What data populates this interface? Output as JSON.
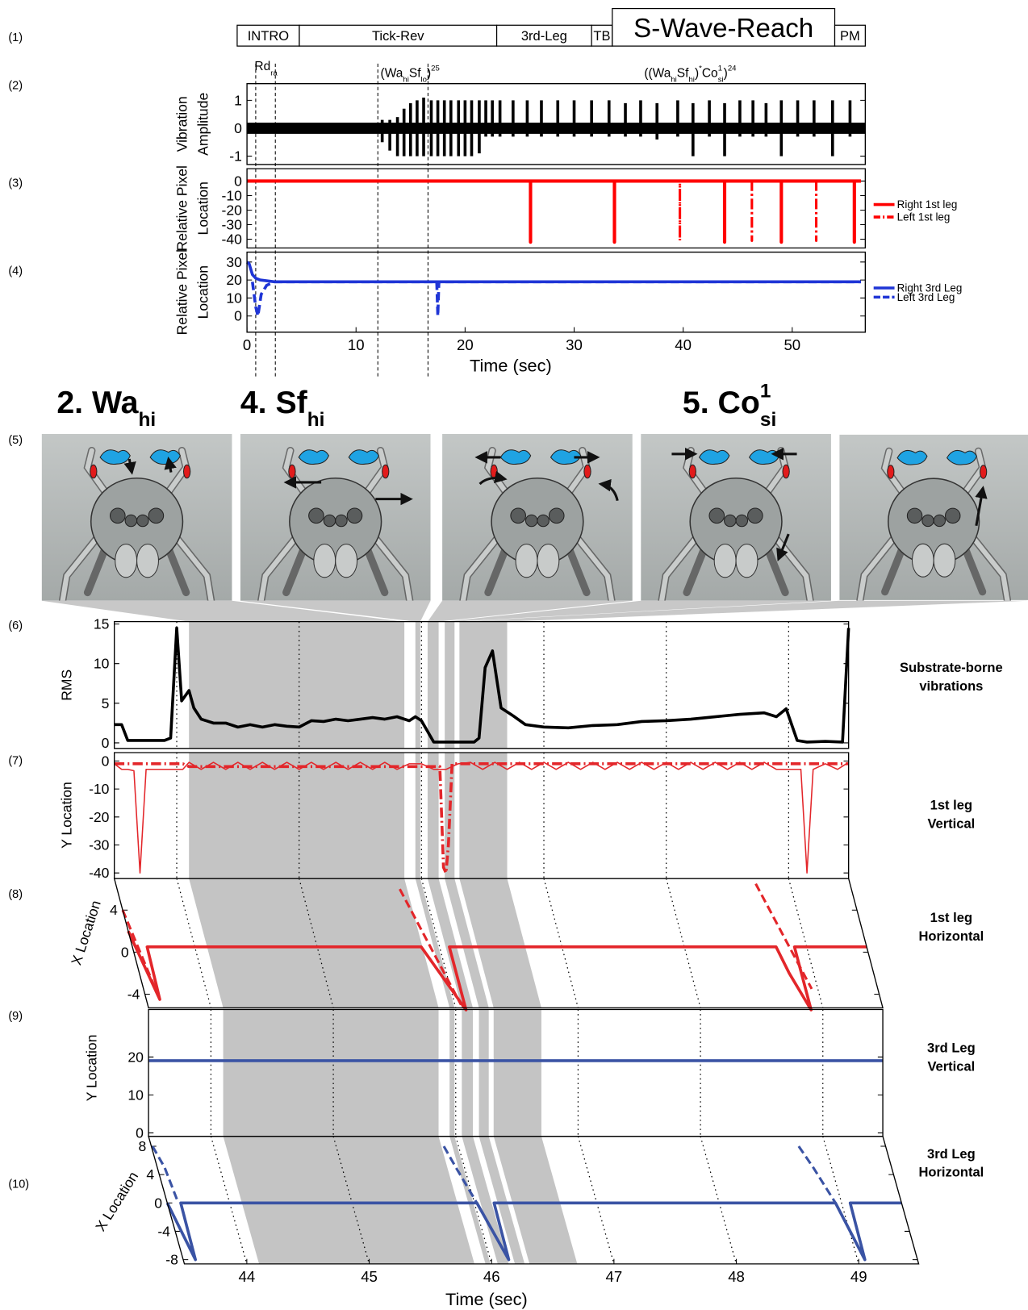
{
  "panel_labels": [
    "(1)",
    "(2)",
    "(3)",
    "(4)",
    "(5)",
    "(6)",
    "(7)",
    "(8)",
    "(9)",
    "(10)"
  ],
  "photo_titles": [
    {
      "parts": [
        {
          "text": "2. Wa"
        },
        {
          "text": "hi",
          "shift": "sub"
        }
      ]
    },
    {
      "parts": [
        {
          "text": "4. Sf"
        },
        {
          "text": "hi",
          "shift": "sub"
        }
      ]
    },
    {
      "parts": [
        {
          "text": "5. Co"
        },
        {
          "text": "1",
          "shift": "sup"
        },
        {
          "text": "si",
          "shift": "sub"
        }
      ]
    }
  ],
  "chart_data": [
    {
      "type": "segments",
      "xlim": [
        0,
        56.7
      ],
      "segments": [
        {
          "label": "INTRO",
          "start": -0.9,
          "end": 4.8
        },
        {
          "label": "Tick-Rev",
          "start": 4.8,
          "end": 22.9
        },
        {
          "label": "3rd-Leg",
          "start": 22.9,
          "end": 31.6
        },
        {
          "label": "TB",
          "start": 31.6,
          "end": 33.5
        },
        {
          "label": "S-Wave-Reach",
          "start": 33.5,
          "end": 53.9,
          "highlight": true
        },
        {
          "label": "PM",
          "start": 53.9,
          "end": 56.7
        }
      ]
    },
    {
      "type": "spike",
      "ylabel": [
        "Vibration",
        "Amplitude"
      ],
      "color": "#000000",
      "xlim": [
        0,
        56.7
      ],
      "ylim": [
        -1.3,
        1.6
      ],
      "yticks": [
        -1,
        0,
        1
      ],
      "band": [
        -0.2,
        0.2
      ],
      "x": [
        12.4,
        13.1,
        13.8,
        14.4,
        15.0,
        15.6,
        16.2,
        16.9,
        17.5,
        18.1,
        18.7,
        19.4,
        20.0,
        20.6,
        21.3,
        21.9,
        22.5,
        23.2,
        24.4,
        25.7,
        27.0,
        28.5,
        30.0,
        31.6,
        33.2,
        34.7,
        36.1,
        37.6,
        39.5,
        40.9,
        42.4,
        43.8,
        45.2,
        46.4,
        47.6,
        49.0,
        50.5,
        52.0,
        53.7,
        55.3
      ],
      "max": [
        0.3,
        0.3,
        0.4,
        0.7,
        0.9,
        1.0,
        1.1,
        1.0,
        1.0,
        1.0,
        1.0,
        1.0,
        1.0,
        1.0,
        1.0,
        1.0,
        1.0,
        1.0,
        1.0,
        1.0,
        1.0,
        1.0,
        1.0,
        1.0,
        1.0,
        0.9,
        1.0,
        0.9,
        1.0,
        0.9,
        1.0,
        0.9,
        1.0,
        1.0,
        0.9,
        1.0,
        1.0,
        1.0,
        1.0,
        1.0
      ],
      "min": [
        -0.5,
        -0.8,
        -1.0,
        -1.0,
        -1.0,
        -1.0,
        -1.0,
        -1.0,
        -1.0,
        -1.0,
        -1.0,
        -1.0,
        -1.0,
        -1.0,
        -0.9,
        -0.3,
        -0.3,
        -0.3,
        -0.3,
        -0.3,
        -0.3,
        -0.3,
        -0.3,
        -0.3,
        -0.3,
        -0.3,
        -0.3,
        -0.4,
        -0.3,
        -1.0,
        -0.3,
        -1.0,
        -0.3,
        -0.3,
        -0.3,
        -1.0,
        -0.3,
        -0.3,
        -1.0,
        -0.3
      ],
      "markers": [
        0.8,
        2.6,
        12.0,
        16.6
      ],
      "annotations": [
        {
          "parts": [
            {
              "text": "Rd"
            },
            {
              "text": "ra",
              "shift": "sub"
            }
          ]
        },
        {
          "parts": [
            {
              "text": "(Wa"
            },
            {
              "text": "hi",
              "shift": "sub"
            },
            {
              "text": "Sf"
            },
            {
              "text": "lo",
              "shift": "sub"
            },
            {
              "text": ")"
            },
            {
              "text": "25",
              "shift": "sup"
            }
          ]
        },
        {
          "parts": [
            {
              "text": "((Wa"
            },
            {
              "text": "hi",
              "shift": "sub"
            },
            {
              "text": "Sf"
            },
            {
              "text": "hi",
              "shift": "sub"
            },
            {
              "text": ")"
            },
            {
              "text": "*",
              "shift": "sup"
            },
            {
              "text": "Co"
            },
            {
              "text": "1",
              "shift": "sup"
            },
            {
              "text": "si",
              "shift": "sub"
            },
            {
              "text": ")"
            },
            {
              "text": "24",
              "shift": "sup"
            }
          ]
        }
      ]
    },
    {
      "type": "line",
      "ylabel": [
        "Relative Pixel",
        "Location"
      ],
      "xlim": [
        0,
        56.7
      ],
      "ylim": [
        -46,
        8.5
      ],
      "yticks": [
        -40,
        -30,
        -20,
        -10,
        0
      ],
      "series": [
        {
          "name": "Right 1st leg",
          "color": "#ff0000",
          "style": "solid",
          "x": [
            0,
            26,
            26,
            26,
            33.7,
            33.7,
            33.7,
            43.8,
            43.8,
            43.8,
            49,
            49,
            49,
            55.7,
            55.7,
            55.7,
            56.3
          ],
          "values": [
            0,
            0,
            -42,
            0,
            0,
            -42,
            0,
            0,
            -42,
            0,
            0,
            -42,
            0,
            0,
            -42,
            0,
            0
          ]
        },
        {
          "name": "Left 1st leg",
          "color": "#ff0000",
          "style": "dashdot",
          "x": [
            0,
            39.7,
            39.7,
            39.7,
            46.3,
            46.3,
            46.3,
            52.2,
            52.2,
            52.2,
            56.3
          ],
          "values": [
            0,
            0,
            -41,
            0,
            0,
            -41,
            0,
            0,
            -41,
            0,
            0
          ]
        }
      ]
    },
    {
      "type": "line",
      "ylabel": [
        "Relative Pixel",
        "Location"
      ],
      "xlabel": "Time (sec)",
      "xlim": [
        0,
        56.7
      ],
      "xticks": [
        0,
        10,
        20,
        30,
        40,
        50
      ],
      "ylim": [
        -9,
        35.5
      ],
      "yticks": [
        0,
        10,
        20,
        30
      ],
      "series": [
        {
          "name": "Right 3rd Leg",
          "color": "#1f35d6",
          "style": "solid",
          "x": [
            0,
            0.2,
            0.5,
            0.8,
            1.2,
            2.5,
            3,
            56.3
          ],
          "values": [
            30,
            29,
            23,
            21,
            20,
            19,
            19,
            19
          ]
        },
        {
          "name": "Left 3rd Leg",
          "color": "#1f35d6",
          "style": "dashed",
          "x": [
            0.5,
            0.8,
            1.0,
            1.3,
            1.8,
            2.5,
            17.4,
            17.5,
            17.6,
            56.3
          ],
          "values": [
            19,
            5,
            0,
            12,
            17,
            19,
            19,
            0,
            19,
            19
          ]
        }
      ]
    },
    {
      "type": "line",
      "ylabel": "RMS",
      "side_label": [
        "Substrate-borne",
        "vibrations"
      ],
      "xlim": [
        43.49,
        49.49
      ],
      "xgrid": [
        44,
        45,
        46,
        47,
        48,
        49
      ],
      "ylim": [
        -0.7,
        15.3
      ],
      "yticks": [
        0,
        5,
        10,
        15
      ],
      "shaded": [
        [
          44.1,
          45.86
        ],
        [
          45.95,
          45.99
        ],
        [
          46.05,
          46.14
        ],
        [
          46.19,
          46.27
        ],
        [
          46.31,
          46.7
        ]
      ],
      "series": [
        {
          "color": "#000000",
          "style": "solid",
          "x": [
            43.49,
            43.55,
            43.6,
            43.9,
            43.95,
            44.0,
            44.04,
            44.1,
            44.14,
            44.2,
            44.3,
            44.4,
            44.5,
            44.6,
            44.7,
            44.8,
            44.9,
            45.0,
            45.1,
            45.2,
            45.3,
            45.4,
            45.5,
            45.6,
            45.7,
            45.8,
            45.9,
            45.95,
            46.0,
            46.1,
            46.43,
            46.47,
            46.52,
            46.58,
            46.65,
            46.75,
            46.85,
            47.0,
            47.2,
            47.4,
            47.6,
            47.8,
            48.0,
            48.2,
            48.4,
            48.6,
            48.8,
            48.9,
            48.98,
            49.07,
            49.15,
            49.3,
            49.44,
            49.49
          ],
          "values": [
            2.3,
            2.3,
            0.3,
            0.3,
            0.6,
            14.5,
            5.3,
            6.6,
            4.4,
            3.0,
            2.5,
            2.5,
            2.0,
            2.3,
            2.0,
            2.3,
            2.1,
            2.0,
            2.8,
            2.7,
            3.0,
            2.8,
            3.0,
            3.2,
            3.0,
            3.3,
            2.8,
            3.3,
            2.8,
            0.1,
            0.1,
            0.6,
            9.5,
            11.6,
            4.4,
            3.4,
            2.3,
            2.0,
            1.9,
            2.2,
            2.3,
            2.7,
            2.8,
            3.0,
            3.3,
            3.6,
            3.8,
            3.3,
            4.3,
            0.3,
            0.1,
            0.2,
            0.1,
            14.5
          ]
        }
      ]
    },
    {
      "type": "line",
      "ylabel": "Y Location",
      "side_label": [
        "1st leg",
        "Vertical"
      ],
      "xlim": [
        43.49,
        49.49
      ],
      "xgrid": [
        44,
        45,
        46,
        47,
        48,
        49
      ],
      "ylim": [
        -42,
        3
      ],
      "yticks": [
        -40,
        -30,
        -20,
        -10,
        0
      ],
      "series": [
        {
          "color": "#e3262a",
          "style": "solid",
          "x": [
            43.49,
            43.55,
            43.6,
            43.65,
            43.7,
            43.75,
            43.85,
            43.95,
            44.05,
            44.1,
            44.2,
            44.3,
            44.4,
            44.5,
            44.6,
            44.7,
            44.8,
            44.9,
            45.0,
            45.1,
            45.2,
            45.3,
            45.4,
            45.5,
            45.6,
            45.7,
            45.8,
            45.9,
            46.0,
            46.1,
            46.2,
            46.3,
            46.4,
            46.5,
            46.6,
            46.7,
            46.8,
            46.9,
            47.0,
            47.1,
            47.2,
            47.3,
            47.4,
            47.5,
            47.6,
            47.7,
            47.8,
            47.9,
            48.0,
            48.1,
            48.2,
            48.3,
            48.4,
            48.5,
            48.6,
            48.7,
            48.8,
            48.9,
            49.0,
            49.1,
            49.15,
            49.2,
            49.3,
            49.4,
            49.49
          ],
          "values": [
            -1,
            -3,
            -3,
            -3.5,
            -40,
            -3,
            -3,
            -3,
            -3,
            -0.5,
            -3,
            -0.5,
            -3,
            -0.5,
            -3,
            -0.5,
            -3,
            -0.5,
            -3,
            -0.5,
            -3,
            -0.5,
            -3,
            -0.5,
            -3,
            -0.5,
            -3,
            -1,
            -1,
            -3,
            -3,
            -1,
            -0.5,
            -3,
            -0.5,
            -3,
            -0.5,
            -3,
            -0.5,
            -3,
            -0.5,
            -3,
            -0.5,
            -3,
            -0.5,
            -3,
            -0.5,
            -3,
            -0.5,
            -3,
            -0.5,
            -3,
            -0.5,
            -3,
            -0.5,
            -3,
            -0.5,
            -3,
            -3,
            -3,
            -40,
            -3,
            -1,
            -3,
            -0.5
          ]
        },
        {
          "color": "#e3262a",
          "style": "dashdot",
          "x": [
            43.49,
            44.05,
            44.1,
            45.8,
            46.15,
            46.18,
            46.2,
            46.22,
            46.25,
            49.49
          ],
          "values": [
            -1,
            -1,
            -2,
            -2,
            -2,
            -38,
            -40,
            -30,
            -1,
            -1
          ]
        }
      ]
    },
    {
      "type": "line",
      "ylabel": "X Location",
      "side_label": [
        "1st leg",
        "Horizontal"
      ],
      "xlim": [
        43.49,
        49.49
      ],
      "xgrid": [
        44,
        45,
        46,
        47,
        48,
        49
      ],
      "ylim": [
        -5.3,
        7
      ],
      "yticks": [
        -4,
        0,
        4
      ],
      "series": [
        {
          "color": "#e3262a",
          "style": "solid",
          "x": [
            43.49,
            43.6,
            43.61,
            45.85,
            46.08,
            46.08,
            48.75,
            48.8,
            48.9,
            48.9,
            49.49
          ],
          "values": [
            2,
            -4.5,
            0.5,
            0.5,
            -5.5,
            0.5,
            0.5,
            -2,
            -5.5,
            0.5,
            0.5
          ]
        },
        {
          "color": "#e3262a",
          "style": "dashed",
          "x": [
            43.49,
            43.6,
            43.7,
            45.8,
            46.05,
            46.1,
            48.72,
            48.95
          ],
          "values": [
            4,
            -4.5,
            null,
            6,
            -5,
            null,
            6.5,
            -3.5
          ]
        }
      ]
    },
    {
      "type": "line",
      "ylabel": "Y Location",
      "side_label": [
        "3rd Leg",
        "Vertical"
      ],
      "xlim": [
        43.49,
        49.49
      ],
      "xgrid": [
        44,
        45,
        46,
        47,
        48,
        49
      ],
      "ylim": [
        -0.9,
        32.5
      ],
      "yticks": [
        0,
        10,
        20
      ],
      "series": [
        {
          "color": "#3a53a4",
          "style": "solid",
          "x": [
            43.49,
            49.49
          ],
          "values": [
            19,
            19
          ]
        }
      ]
    },
    {
      "type": "line",
      "ylabel": "X Location",
      "side_label": [
        "3rd Leg",
        "Horizontal"
      ],
      "xlabel": "Time (sec)",
      "xlim": [
        43.49,
        49.49
      ],
      "xticks": [
        44,
        45,
        46,
        47,
        48,
        49
      ],
      "grid": true,
      "ylim": [
        -8.6,
        9.4
      ],
      "yticks": [
        -8,
        -4,
        0,
        4,
        8
      ],
      "series": [
        {
          "color": "#3a53a4",
          "style": "solid",
          "x": [
            43.49,
            43.59,
            43.6,
            46.02,
            46.15,
            46.16,
            48.95,
            49.06,
            49.07,
            49.49
          ],
          "values": [
            0,
            -8,
            0,
            0,
            -8,
            0,
            0,
            -8,
            0,
            0
          ]
        },
        {
          "color": "#3a53a4",
          "style": "dashed",
          "x": [
            43.5,
            43.55,
            43.58,
            43.6,
            45.88,
            45.93,
            46.02,
            46.1,
            48.78,
            48.85,
            48.95
          ],
          "values": [
            8,
            5,
            0,
            null,
            8,
            5,
            0,
            null,
            8,
            5,
            0
          ]
        }
      ]
    }
  ]
}
